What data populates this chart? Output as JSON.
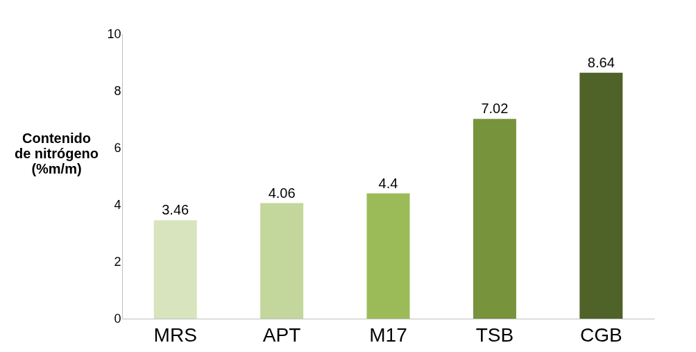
{
  "chart_data": {
    "type": "bar",
    "ylabel": "Contenido de nitrógeno (%m/m)",
    "categories": [
      "MRS",
      "APT",
      "M17",
      "TSB",
      "CGB"
    ],
    "values": [
      3.46,
      4.06,
      4.4,
      7.02,
      8.64
    ],
    "colors": [
      "#d7e4bd",
      "#c3d69b",
      "#9bbb59",
      "#77933c",
      "#4f6228"
    ],
    "ylim": [
      0,
      10
    ],
    "yticks": [
      0,
      2,
      4,
      6,
      8,
      10
    ],
    "data_labels": true,
    "grid": false
  }
}
